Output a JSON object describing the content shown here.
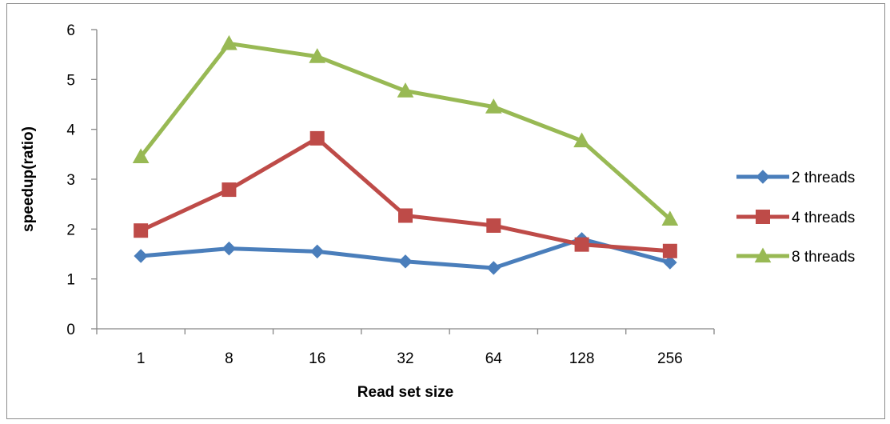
{
  "chart_data": {
    "type": "line",
    "title": "",
    "xlabel": "Read set size",
    "ylabel": "speedup(ratio)",
    "categories": [
      "1",
      "8",
      "16",
      "32",
      "64",
      "128",
      "256"
    ],
    "ylim": [
      0,
      6
    ],
    "yticks": [
      0,
      1,
      2,
      3,
      4,
      5,
      6
    ],
    "grid": false,
    "legend_position": "right",
    "series": [
      {
        "name": "2 threads",
        "color": "#4a7ebb",
        "marker": "diamond",
        "values": [
          1.46,
          1.61,
          1.55,
          1.35,
          1.22,
          1.8,
          1.33
        ]
      },
      {
        "name": "4 threads",
        "color": "#be4b48",
        "marker": "square",
        "values": [
          1.97,
          2.79,
          3.82,
          2.27,
          2.07,
          1.69,
          1.56
        ]
      },
      {
        "name": "8 threads",
        "color": "#98b954",
        "marker": "triangle",
        "values": [
          3.45,
          5.72,
          5.46,
          4.77,
          4.45,
          3.77,
          2.2
        ]
      }
    ]
  }
}
